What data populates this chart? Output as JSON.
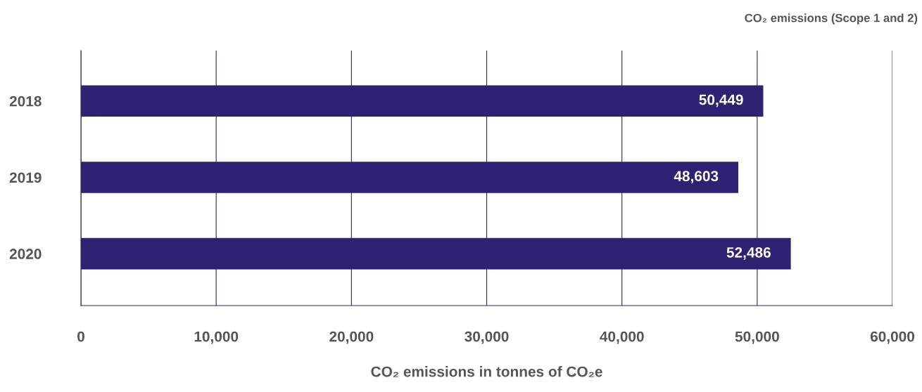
{
  "chart_data": {
    "type": "bar",
    "orientation": "horizontal",
    "title": "CO₂ emissions (Scope 1 and 2)",
    "xlabel": "CO₂ emissions in tonnes of CO₂e",
    "categories": [
      "2018",
      "2019",
      "2020"
    ],
    "values": [
      50449,
      48603,
      52486
    ],
    "value_labels": [
      "50,449",
      "48,603",
      "52,486"
    ],
    "color": "#2e2272",
    "xlim": [
      0,
      60000
    ],
    "xticks": [
      0,
      {
        "value": 10000,
        "label": "10,000"
      },
      {
        "value": 20000,
        "label": "20,000"
      },
      {
        "value": 30000,
        "label": "30,000"
      },
      {
        "value": 40000,
        "label": "40,000"
      },
      {
        "value": 50000,
        "label": "50,000"
      },
      {
        "value": 60000,
        "label": "60,000"
      }
    ],
    "grid": "x",
    "legend": false
  }
}
